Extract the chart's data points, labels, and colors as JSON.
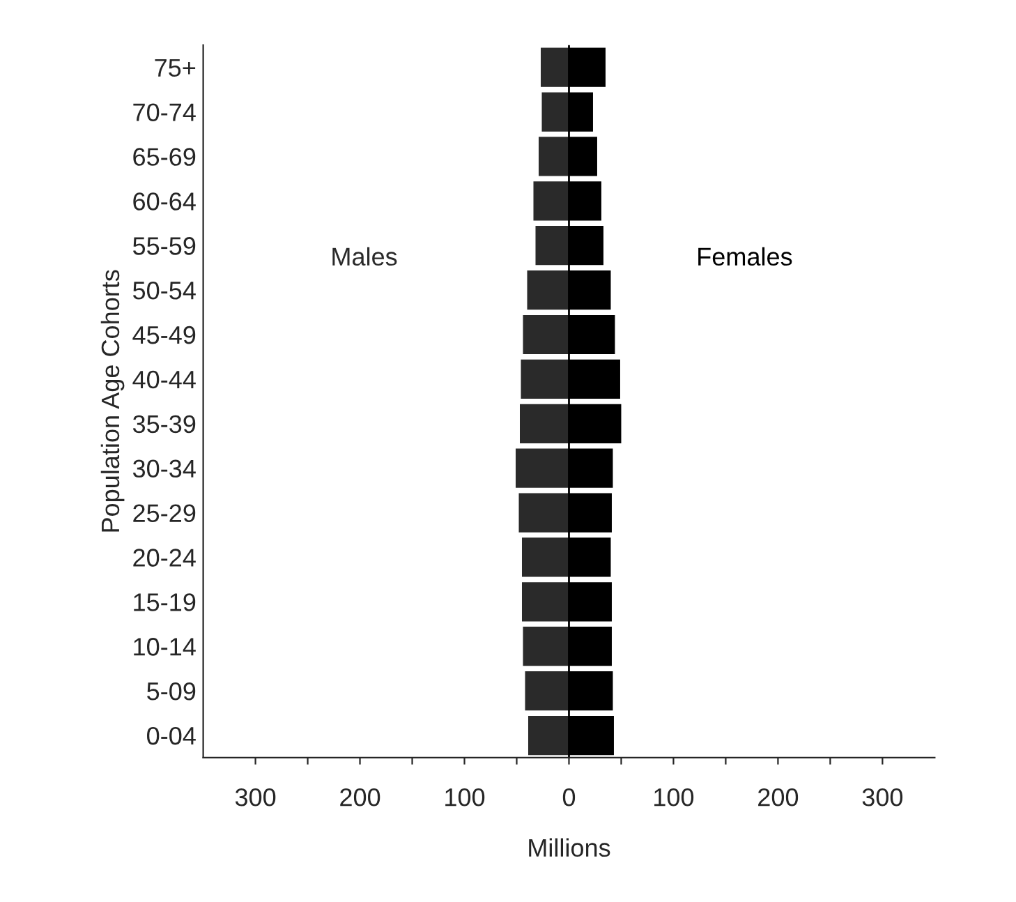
{
  "chart_data": {
    "type": "bar",
    "orientation": "horizontal",
    "ylabel": "Population Age Cohorts",
    "xlabel": "Millions",
    "categories": [
      "75+",
      "70-74",
      "65-69",
      "60-64",
      "55-59",
      "50-54",
      "45-49",
      "40-44",
      "35-39",
      "30-34",
      "25-29",
      "20-24",
      "15-19",
      "10-14",
      "5-09",
      "0-04"
    ],
    "series": [
      {
        "name": "Males",
        "color": "#2a2a2a",
        "values": [
          -27,
          -26,
          -29,
          -34,
          -32,
          -40,
          -44,
          -46,
          -47,
          -51,
          -48,
          -45,
          -45,
          -44,
          -42,
          -39
        ]
      },
      {
        "name": "Females",
        "color": "#000000",
        "values": [
          35,
          23,
          27,
          31,
          33,
          40,
          44,
          49,
          50,
          42,
          41,
          40,
          41,
          41,
          42,
          43
        ]
      }
    ],
    "xlim": [
      -350,
      350
    ],
    "xticks": [
      {
        "value": -300,
        "label": "300"
      },
      {
        "value": -250,
        "label": null
      },
      {
        "value": -200,
        "label": "200"
      },
      {
        "value": -150,
        "label": null
      },
      {
        "value": -100,
        "label": "100"
      },
      {
        "value": -50,
        "label": null
      },
      0,
      {
        "value": 50,
        "label": null
      },
      100,
      {
        "value": 150,
        "label": null
      },
      200,
      {
        "value": 250,
        "label": null
      },
      300
    ],
    "stacked": true,
    "ref_lines": [
      {
        "axis": "x",
        "value": 0,
        "color": "#000000"
      }
    ],
    "legend": false
  }
}
